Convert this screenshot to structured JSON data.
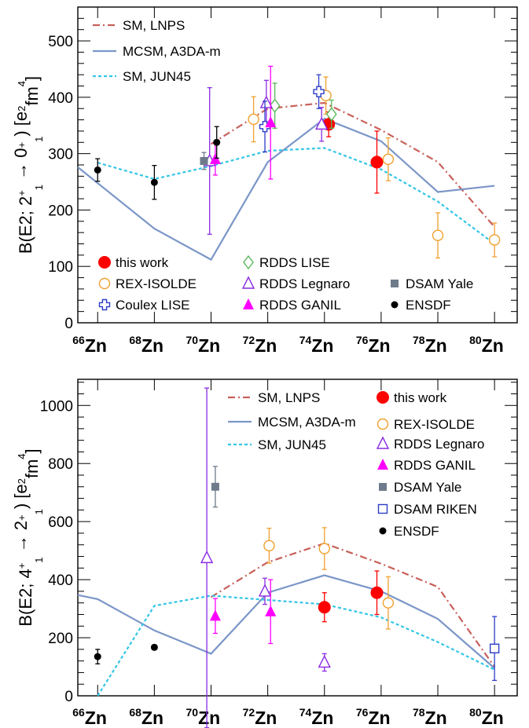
{
  "figure": {
    "x_categories": [
      {
        "mass": "66",
        "element": "Zn"
      },
      {
        "mass": "68",
        "element": "Zn"
      },
      {
        "mass": "70",
        "element": "Zn"
      },
      {
        "mass": "72",
        "element": "Zn"
      },
      {
        "mass": "74",
        "element": "Zn"
      },
      {
        "mass": "76",
        "element": "Zn"
      },
      {
        "mass": "78",
        "element": "Zn"
      },
      {
        "mass": "80",
        "element": "Zn"
      }
    ]
  },
  "chart_data": [
    {
      "type": "scatter",
      "ylabel": "B(E2; 2+1 → 0+1) [e²fm⁴]",
      "ylabel_parts": {
        "pre": "B(E2; 2",
        "sup1": "+",
        "sub1": "1",
        "mid": " → 0",
        "sup2": "+",
        "sub2": "1",
        "post": ") [e",
        "sup3": "2",
        "post2": "fm",
        "sup4": "4",
        "end": "]"
      },
      "xlim": [
        65.3,
        80.8
      ],
      "ylim": [
        0,
        560
      ],
      "yticks": [
        0,
        100,
        200,
        300,
        400,
        500
      ],
      "lines": [
        {
          "name": "SM, LNPS",
          "style": "dashdot",
          "color": "#c8605a",
          "points": [
            [
              70,
              317
            ],
            [
              72,
              380
            ],
            [
              74,
              390
            ],
            [
              76,
              342
            ],
            [
              78,
              285
            ],
            [
              80,
              170
            ]
          ]
        },
        {
          "name": "MCSM, A3DA-m",
          "style": "solid",
          "color": "#7b96c8",
          "points": [
            [
              65.3,
              276
            ],
            [
              68,
              167
            ],
            [
              70,
              112
            ],
            [
              72,
              285
            ],
            [
              74,
              362
            ],
            [
              76,
              322
            ],
            [
              78,
              232
            ],
            [
              80,
              243
            ]
          ]
        },
        {
          "name": "SM, JUN45",
          "style": "dotted",
          "color": "#33c6e6",
          "points": [
            [
              66,
              284
            ],
            [
              68,
              255
            ],
            [
              70,
              278
            ],
            [
              72,
              305
            ],
            [
              74,
              310
            ],
            [
              76,
              272
            ],
            [
              78,
              215
            ],
            [
              80,
              140
            ]
          ]
        }
      ],
      "series": [
        {
          "name": "this work",
          "marker": "filled-circle",
          "color": "#ff0000",
          "points": [
            {
              "x": 74.15,
              "y": 352,
              "err": 22
            },
            {
              "x": 75.85,
              "y": 285,
              "err": 55
            }
          ]
        },
        {
          "name": "REX-ISOLDE",
          "marker": "open-circle",
          "color": "#f0a030",
          "points": [
            {
              "x": 71.5,
              "y": 361,
              "err": 40
            },
            {
              "x": 74.05,
              "y": 403,
              "err": 33
            },
            {
              "x": 76.25,
              "y": 290,
              "err": 38
            },
            {
              "x": 78.0,
              "y": 155,
              "err": 40
            },
            {
              "x": 80.0,
              "y": 147,
              "err": 30
            }
          ]
        },
        {
          "name": "RDDS LISE",
          "marker": "open-diamond",
          "color": "#5ab85a",
          "points": [
            {
              "x": 72.25,
              "y": 385,
              "err": 40
            },
            {
              "x": 74.25,
              "y": 370,
              "err": 25
            }
          ]
        },
        {
          "name": "RDDS Legnaro",
          "marker": "open-triangle",
          "color": "#8a2be2",
          "points": [
            {
              "x": 69.95,
              "y": 287,
              "err": 130
            },
            {
              "x": 71.95,
              "y": 390,
              "err": 40
            },
            {
              "x": 73.9,
              "y": 352,
              "err": 30
            }
          ]
        },
        {
          "name": "DSAM Yale",
          "marker": "filled-square",
          "color": "#6e7b8b",
          "points": [
            {
              "x": 69.75,
              "y": 287,
              "err": 15
            }
          ]
        },
        {
          "name": "Coulex LISE",
          "marker": "open-cross",
          "color": "#2b3ec8",
          "points": [
            {
              "x": 71.9,
              "y": 348,
              "err": 45
            },
            {
              "x": 73.8,
              "y": 410,
              "err": 30
            }
          ]
        },
        {
          "name": "RDDS GANIL",
          "marker": "filled-triangle",
          "color": "#ff00ff",
          "points": [
            {
              "x": 70.15,
              "y": 290,
              "err": 28
            },
            {
              "x": 72.1,
              "y": 355,
              "err": 100
            }
          ]
        },
        {
          "name": "ENSDF",
          "marker": "filled-circle-small",
          "color": "#000000",
          "points": [
            {
              "x": 66,
              "y": 271,
              "err": 20
            },
            {
              "x": 68,
              "y": 249,
              "err": 30
            },
            {
              "x": 70.2,
              "y": 320,
              "err": 28
            }
          ]
        }
      ]
    },
    {
      "type": "scatter",
      "ylabel": "B(E2; 4+1 → 2+1) [e²fm⁴]",
      "ylabel_parts": {
        "pre": "B(E2; 4",
        "sup1": "+",
        "sub1": "1",
        "mid": " → 2",
        "sup2": "+",
        "sub2": "1",
        "post": ") [e",
        "sup3": "2",
        "post2": "fm",
        "sup4": "4",
        "end": "]"
      },
      "xlim": [
        65.3,
        80.8
      ],
      "ylim": [
        0,
        1090
      ],
      "yticks": [
        0,
        200,
        400,
        600,
        800,
        1000
      ],
      "lines": [
        {
          "name": "SM, LNPS",
          "style": "dashdot",
          "color": "#c8605a",
          "points": [
            [
              70,
              340
            ],
            [
              72,
              460
            ],
            [
              74,
              525
            ],
            [
              76,
              455
            ],
            [
              78,
              375
            ],
            [
              80,
              100
            ]
          ]
        },
        {
          "name": "MCSM, A3DA-m",
          "style": "solid",
          "color": "#7b96c8",
          "points": [
            [
              65.3,
              347
            ],
            [
              66,
              333
            ],
            [
              68,
              225
            ],
            [
              70,
              145
            ],
            [
              72,
              355
            ],
            [
              74,
              415
            ],
            [
              76,
              360
            ],
            [
              78,
              265
            ],
            [
              80,
              95
            ]
          ]
        },
        {
          "name": "SM, JUN45",
          "style": "dotted",
          "color": "#33c6e6",
          "points": [
            [
              66,
              0
            ],
            [
              68,
              310
            ],
            [
              70,
              345
            ],
            [
              72,
              330
            ],
            [
              74,
              315
            ],
            [
              76,
              270
            ],
            [
              78,
              185
            ],
            [
              80,
              90
            ]
          ]
        }
      ],
      "series": [
        {
          "name": "this work",
          "marker": "filled-circle",
          "color": "#ff0000",
          "points": [
            {
              "x": 74.0,
              "y": 305,
              "err": 50
            },
            {
              "x": 75.85,
              "y": 355,
              "err": 75
            }
          ]
        },
        {
          "name": "REX-ISOLDE",
          "marker": "open-circle",
          "color": "#f0a030",
          "points": [
            {
              "x": 72.05,
              "y": 517,
              "err": 60
            },
            {
              "x": 74.0,
              "y": 507,
              "err": 72
            },
            {
              "x": 76.25,
              "y": 320,
              "err": 90
            }
          ]
        },
        {
          "name": "RDDS Legnaro",
          "marker": "open-triangle",
          "color": "#8a2be2",
          "points": [
            {
              "x": 69.85,
              "y": 475,
              "err": 585
            },
            {
              "x": 71.9,
              "y": 360,
              "err": 45
            },
            {
              "x": 74.0,
              "y": 115,
              "err": 30
            }
          ]
        },
        {
          "name": "RDDS GANIL",
          "marker": "filled-triangle",
          "color": "#ff00ff",
          "points": [
            {
              "x": 70.15,
              "y": 275,
              "err": 60
            },
            {
              "x": 72.1,
              "y": 290,
              "err": 110
            }
          ]
        },
        {
          "name": "DSAM Yale",
          "marker": "filled-square",
          "color": "#6e7b8b",
          "points": [
            {
              "x": 70.15,
              "y": 720,
              "err": 70
            }
          ]
        },
        {
          "name": "DSAM RIKEN",
          "marker": "open-square",
          "color": "#2b3ec8",
          "points": [
            {
              "x": 80.0,
              "y": 163,
              "err": 110
            }
          ]
        },
        {
          "name": "ENSDF",
          "marker": "filled-circle-small",
          "color": "#000000",
          "points": [
            {
              "x": 66,
              "y": 135,
              "err": 25
            },
            {
              "x": 68,
              "y": 167,
              "err": 8
            }
          ]
        }
      ]
    }
  ]
}
